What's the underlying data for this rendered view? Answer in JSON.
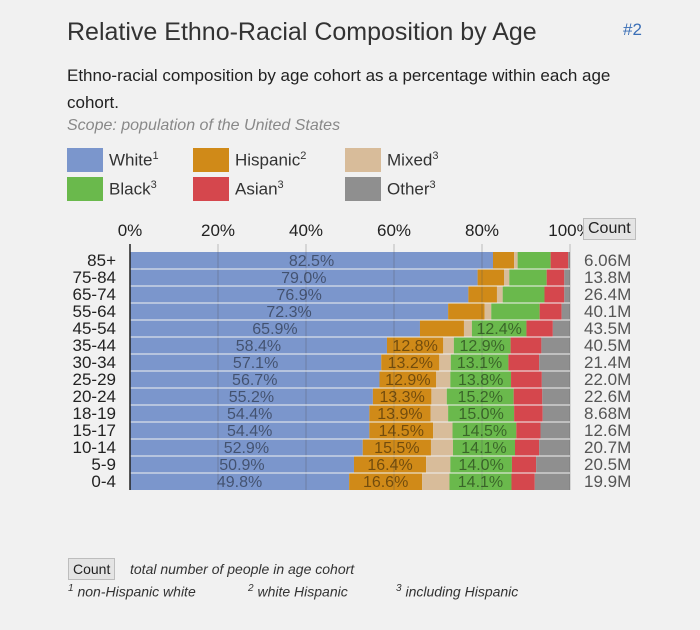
{
  "header": {
    "title": "Relative Ethno-Racial Composition by Age",
    "ref_link": "#2",
    "subtitle": "Ethno-racial composition by age cohort as a percentage within each age cohort.",
    "scope": "Scope: population of the United States"
  },
  "legend": [
    {
      "label": "White",
      "sup": "1",
      "color": "#7b96cc"
    },
    {
      "label": "Hispanic",
      "sup": "2",
      "color": "#d08a18"
    },
    {
      "label": "Mixed",
      "sup": "3",
      "color": "#d8bc9a"
    },
    {
      "label": "Black",
      "sup": "3",
      "color": "#6ab94c"
    },
    {
      "label": "Asian",
      "sup": "3",
      "color": "#d5474d"
    },
    {
      "label": "Other",
      "sup": "3",
      "color": "#8f8f8f"
    }
  ],
  "count_header": "Count",
  "footnotes": {
    "count_button": "Count",
    "count_note": "total number of people in age cohort",
    "note1_sup": "1",
    "note1": "non-Hispanic white",
    "note2_sup": "2",
    "note2": "white Hispanic",
    "note3_sup": "3",
    "note3": "including Hispanic"
  },
  "chart_data": {
    "type": "bar",
    "orientation": "horizontal-stacked",
    "title": "Relative Ethno-Racial Composition by Age",
    "xlim": [
      0,
      100
    ],
    "x_ticks": [
      "0%",
      "20%",
      "40%",
      "60%",
      "80%",
      "100%"
    ],
    "grid": true,
    "categories": [
      "85+",
      "75-84",
      "65-74",
      "55-64",
      "45-54",
      "35-44",
      "30-34",
      "25-29",
      "20-24",
      "18-19",
      "15-17",
      "10-14",
      "5-9",
      "0-4"
    ],
    "counts": [
      "6.06M",
      "13.8M",
      "26.4M",
      "40.1M",
      "43.5M",
      "40.5M",
      "21.4M",
      "22.0M",
      "22.6M",
      "8.68M",
      "12.6M",
      "20.7M",
      "20.5M",
      "19.9M"
    ],
    "series": [
      {
        "name": "White",
        "color": "#7b96cc",
        "values": [
          82.5,
          79.0,
          76.9,
          72.3,
          65.9,
          58.4,
          57.1,
          56.7,
          55.2,
          54.4,
          54.4,
          52.9,
          50.9,
          49.8
        ],
        "labels": [
          "82.5%",
          "79.0%",
          "76.9%",
          "72.3%",
          "65.9%",
          "58.4%",
          "57.1%",
          "56.7%",
          "55.2%",
          "54.4%",
          "54.4%",
          "52.9%",
          "50.9%",
          "49.8%"
        ]
      },
      {
        "name": "Hispanic",
        "color": "#d08a18",
        "values": [
          4.8,
          6.0,
          6.5,
          8.3,
          10.0,
          12.8,
          13.2,
          12.9,
          13.3,
          13.9,
          14.5,
          15.5,
          16.4,
          16.6
        ],
        "labels": [
          "",
          "",
          "",
          "",
          "",
          "12.8%",
          "13.2%",
          "12.9%",
          "13.3%",
          "13.9%",
          "14.5%",
          "15.5%",
          "16.4%",
          "16.6%"
        ]
      },
      {
        "name": "Mixed",
        "color": "#d8bc9a",
        "values": [
          0.8,
          1.2,
          1.3,
          1.5,
          1.8,
          2.4,
          2.6,
          3.2,
          3.5,
          4.0,
          4.4,
          5.0,
          5.5,
          6.2
        ],
        "labels": [
          "",
          "",
          "",
          "",
          "",
          "",
          "",
          "",
          "",
          "",
          "",
          "",
          "",
          ""
        ]
      },
      {
        "name": "Black",
        "color": "#6ab94c",
        "values": [
          7.5,
          8.5,
          9.5,
          11.0,
          12.4,
          12.9,
          13.1,
          13.8,
          15.2,
          15.0,
          14.5,
          14.1,
          14.0,
          14.1
        ],
        "labels": [
          "",
          "",
          "",
          "",
          "12.4%",
          "12.9%",
          "13.1%",
          "13.8%",
          "15.2%",
          "15.0%",
          "14.5%",
          "14.1%",
          "14.0%",
          "14.1%"
        ]
      },
      {
        "name": "Asian",
        "color": "#d5474d",
        "values": [
          4.0,
          4.0,
          4.5,
          5.0,
          6.0,
          7.0,
          7.0,
          7.0,
          6.5,
          6.5,
          5.5,
          5.5,
          5.5,
          5.3
        ],
        "labels": [
          "",
          "",
          "",
          "",
          "",
          "",
          "",
          "",
          "",
          "",
          "",
          "",
          "",
          ""
        ]
      },
      {
        "name": "Other",
        "color": "#8f8f8f",
        "values": [
          0.4,
          1.3,
          1.3,
          1.9,
          3.9,
          6.5,
          7.0,
          6.4,
          6.3,
          6.2,
          6.7,
          7.0,
          7.7,
          8.0
        ],
        "labels": [
          "",
          "",
          "",
          "",
          "",
          "",
          "",
          "",
          "",
          "",
          "",
          "",
          "",
          ""
        ]
      }
    ]
  }
}
